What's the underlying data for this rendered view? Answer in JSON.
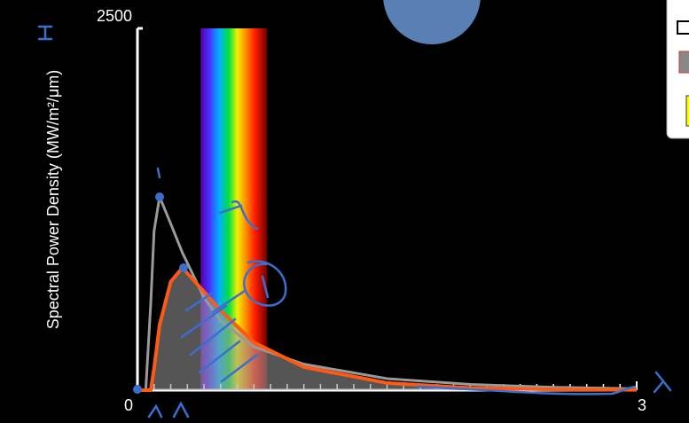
{
  "chart_data": {
    "type": "line",
    "ylabel": "Spectral Power Density (MW/m²/μm)",
    "xlim": [
      0,
      3
    ],
    "ylim": [
      0,
      2500
    ],
    "xticks": [
      0,
      3
    ],
    "yticks": [
      2500
    ],
    "xminorticks": [
      0.1,
      0.2,
      0.3,
      0.4,
      0.5,
      0.6,
      0.7,
      0.8,
      0.9,
      1.0,
      1.1,
      1.2,
      1.3,
      1.4,
      1.5,
      1.6,
      1.7,
      1.8,
      1.9,
      2.0,
      2.1,
      2.2,
      2.3,
      2.4,
      2.5,
      2.6,
      2.7,
      2.8,
      2.9
    ],
    "visible_range": [
      0.38,
      0.78
    ],
    "x": [
      0,
      0.05,
      0.08,
      0.1,
      0.133,
      0.2,
      0.27,
      0.4,
      0.5,
      0.7,
      1.0,
      1.5,
      2.0,
      2.5,
      3.0
    ],
    "series": [
      {
        "color": "#9a9a9a",
        "values": [
          0,
          0,
          600,
          1100,
          1336,
          1150,
          950,
          640,
          480,
          300,
          180,
          80,
          40,
          20,
          10
        ]
      },
      {
        "color": "#ff5a14",
        "values": [
          0,
          0,
          0,
          150,
          450,
          750,
          846,
          680,
          550,
          330,
          160,
          50,
          15,
          5,
          2
        ]
      }
    ]
  }
}
